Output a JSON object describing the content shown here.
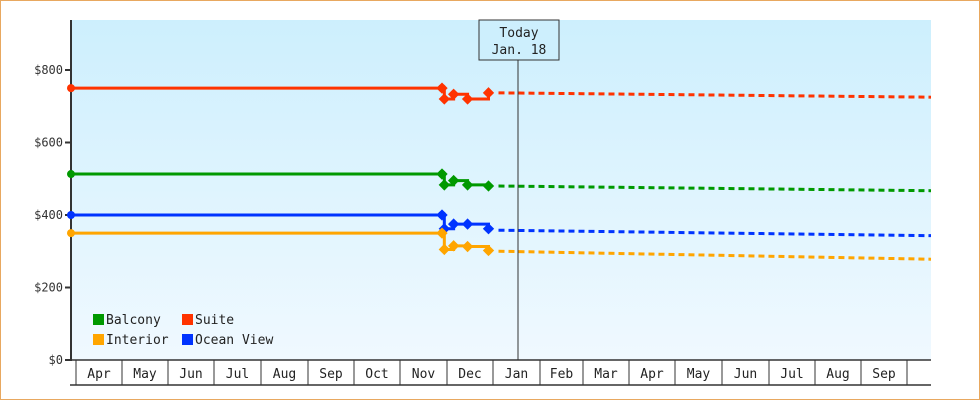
{
  "chart_data": {
    "type": "line",
    "title": "",
    "xlabel": "",
    "ylabel": "",
    "ylim": [
      0,
      900
    ],
    "y_ticks": [
      "$0",
      "$200",
      "$400",
      "$600",
      "$800"
    ],
    "x_ticks": [
      "Apr",
      "May",
      "Jun",
      "Jul",
      "Aug",
      "Sep",
      "Oct",
      "Nov",
      "Dec",
      "Jan",
      "Feb",
      "Mar",
      "Apr",
      "May",
      "Jun",
      "Jul",
      "Aug",
      "Sep"
    ],
    "annotation": {
      "line1": "Today",
      "line2": "Jan. 18"
    },
    "legend": [
      {
        "name": "Balcony",
        "color": "#009900"
      },
      {
        "name": "Suite",
        "color": "#ff3300"
      },
      {
        "name": "Interior",
        "color": "#ffa500"
      },
      {
        "name": "Ocean View",
        "color": "#0033ff"
      }
    ],
    "series": [
      {
        "name": "Suite",
        "color": "#ff3300",
        "history": [
          [
            0,
            750
          ],
          [
            8.0,
            750
          ],
          [
            8.05,
            720
          ],
          [
            8.25,
            733
          ],
          [
            8.55,
            720
          ],
          [
            9.0,
            737
          ]
        ],
        "forecast": [
          [
            9.0,
            737
          ],
          [
            18.4,
            725
          ]
        ]
      },
      {
        "name": "Balcony",
        "color": "#009900",
        "history": [
          [
            0,
            513
          ],
          [
            8.0,
            513
          ],
          [
            8.05,
            483
          ],
          [
            8.25,
            495
          ],
          [
            8.55,
            483
          ],
          [
            9.0,
            480
          ]
        ],
        "forecast": [
          [
            9.0,
            480
          ],
          [
            18.4,
            467
          ]
        ]
      },
      {
        "name": "Ocean View",
        "color": "#0033ff",
        "history": [
          [
            0,
            400
          ],
          [
            8.0,
            400
          ],
          [
            8.05,
            362
          ],
          [
            8.25,
            375
          ],
          [
            8.55,
            375
          ],
          [
            9.0,
            362
          ]
        ],
        "forecast": [
          [
            9.0,
            358
          ],
          [
            18.4,
            343
          ]
        ]
      },
      {
        "name": "Interior",
        "color": "#ffa500",
        "history": [
          [
            0,
            350
          ],
          [
            8.0,
            350
          ],
          [
            8.05,
            305
          ],
          [
            8.25,
            315
          ],
          [
            8.55,
            313
          ],
          [
            9.0,
            302
          ]
        ],
        "forecast": [
          [
            9.0,
            300
          ],
          [
            18.4,
            278
          ]
        ]
      }
    ]
  }
}
